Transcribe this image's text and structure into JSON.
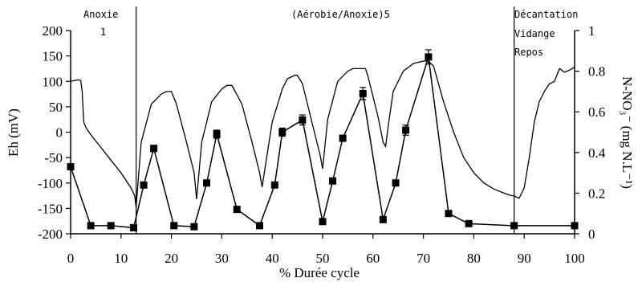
{
  "chart_data": {
    "type": "line",
    "xlabel": "% Durée cycle",
    "ylabel_left": "Eh (mV)",
    "ylabel_right": "N-NO₃⁻ (mg N.L⁻¹)",
    "xlim": [
      0,
      100
    ],
    "ylim_left": [
      -200,
      200
    ],
    "ylim_right": [
      0,
      1
    ],
    "x_ticks": [
      "0",
      "10",
      "20",
      "30",
      "40",
      "50",
      "60",
      "70",
      "80",
      "90",
      "100"
    ],
    "y_ticks_left": [
      "200",
      "150",
      "100",
      "50",
      "0",
      "-50",
      "-100",
      "-150",
      "-200"
    ],
    "y_ticks_right": [
      "1",
      "0.8",
      "0.6",
      "0.4",
      "0.2",
      "0"
    ],
    "phase_dividers": [
      13,
      88
    ],
    "phase_labels": [
      "Anoxie",
      "1",
      "(Aérobie/Anoxie)5",
      "Décantation",
      "Vidange",
      "Repos"
    ],
    "series": [
      {
        "axis": "left",
        "style": "line",
        "x": [
          0,
          1,
          1.5,
          2,
          2.3,
          2.6,
          3,
          4,
          6,
          8,
          10,
          12,
          12.7,
          13,
          14,
          16,
          18,
          19,
          20,
          21,
          23,
          24.5,
          25,
          26,
          28,
          30,
          31,
          32,
          34,
          36,
          37.5,
          38,
          40,
          42,
          43,
          44.5,
          45,
          46,
          48,
          49.5,
          50,
          51,
          53,
          55,
          56,
          57,
          58.5,
          59,
          61,
          62,
          62.5,
          63,
          64,
          66,
          68,
          70,
          71,
          72,
          74,
          76,
          78,
          80,
          82,
          84,
          86,
          87.5,
          88,
          88.5,
          89,
          90,
          91,
          92,
          93,
          94,
          95,
          96,
          97,
          98,
          99,
          100
        ],
        "y": [
          100,
          102,
          103,
          102,
          80,
          20,
          10,
          -5,
          -30,
          -55,
          -80,
          -110,
          -125,
          -148,
          -20,
          55,
          75,
          80,
          80,
          55,
          -20,
          -80,
          -132,
          -20,
          60,
          85,
          92,
          92,
          55,
          -20,
          -80,
          -108,
          20,
          85,
          105,
          112,
          112,
          95,
          15,
          -45,
          -72,
          25,
          100,
          120,
          125,
          125,
          125,
          110,
          30,
          -20,
          -28,
          10,
          80,
          120,
          135,
          140,
          140,
          130,
          60,
          0,
          -50,
          -80,
          -100,
          -112,
          -120,
          -125,
          -125,
          -128,
          -130,
          -110,
          -50,
          20,
          60,
          80,
          95,
          100,
          125,
          118,
          122,
          128
        ]
      },
      {
        "axis": "right",
        "style": "line-markers",
        "x": [
          0,
          4,
          8,
          12.5,
          14.5,
          16.5,
          20.5,
          24.5,
          27,
          29,
          33,
          37.5,
          40.5,
          42,
          46,
          50,
          52,
          54,
          58,
          62,
          64.5,
          66.5,
          71,
          75,
          79,
          88,
          100
        ],
        "y": [
          0.33,
          0.04,
          0.04,
          0.03,
          0.24,
          0.42,
          0.04,
          0.035,
          0.25,
          0.49,
          0.12,
          0.04,
          0.24,
          0.5,
          0.56,
          0.06,
          0.26,
          0.47,
          0.69,
          0.07,
          0.25,
          0.51,
          0.87,
          0.1,
          0.05,
          0.04,
          0.04
        ],
        "error": [
          0,
          0,
          0,
          0,
          0,
          0.015,
          0,
          0,
          0,
          0.02,
          0,
          0,
          0,
          0.02,
          0.025,
          0,
          0,
          0,
          0.03,
          0,
          0,
          0.025,
          0.035,
          0,
          0,
          0,
          0
        ]
      }
    ]
  }
}
